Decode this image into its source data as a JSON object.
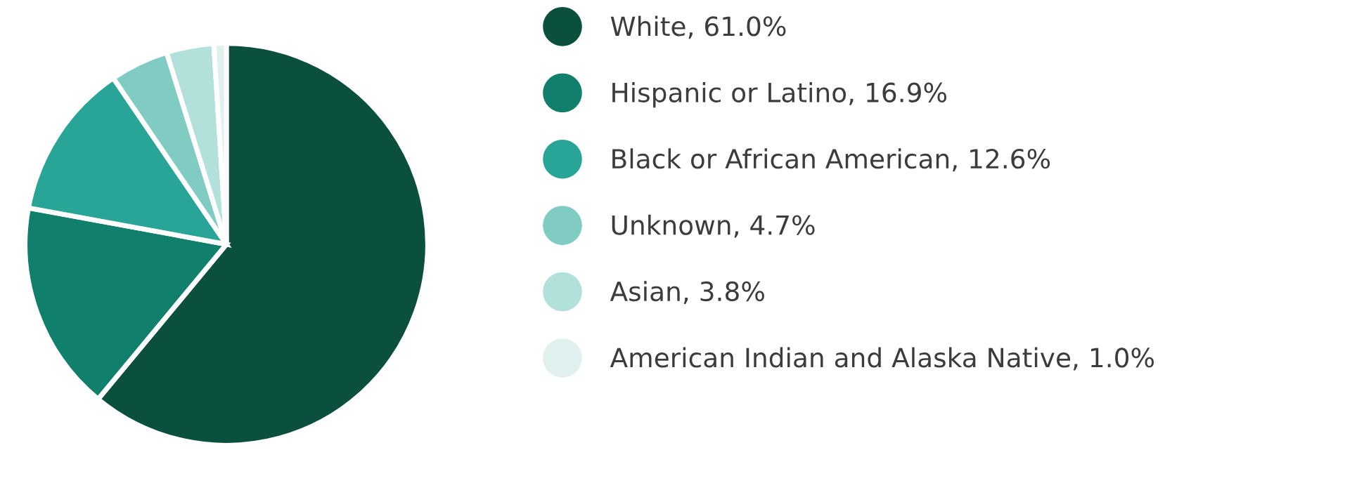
{
  "chart_data": {
    "type": "pie",
    "categories": [
      "White, 61.0%",
      "Hispanic or Latino, 16.9%",
      "Black or African American, 12.6%",
      "Unknown, 4.7%",
      "Asian, 3.8%",
      "American Indian and Alaska Native, 1.0%"
    ],
    "values": [
      61.0,
      16.9,
      12.6,
      4.7,
      3.8,
      1.0
    ],
    "colors": [
      "#0b4f3f",
      "#10806d",
      "#28a596",
      "#80cbc2",
      "#b2e0db",
      "#dff0ee"
    ],
    "legend": "right"
  }
}
